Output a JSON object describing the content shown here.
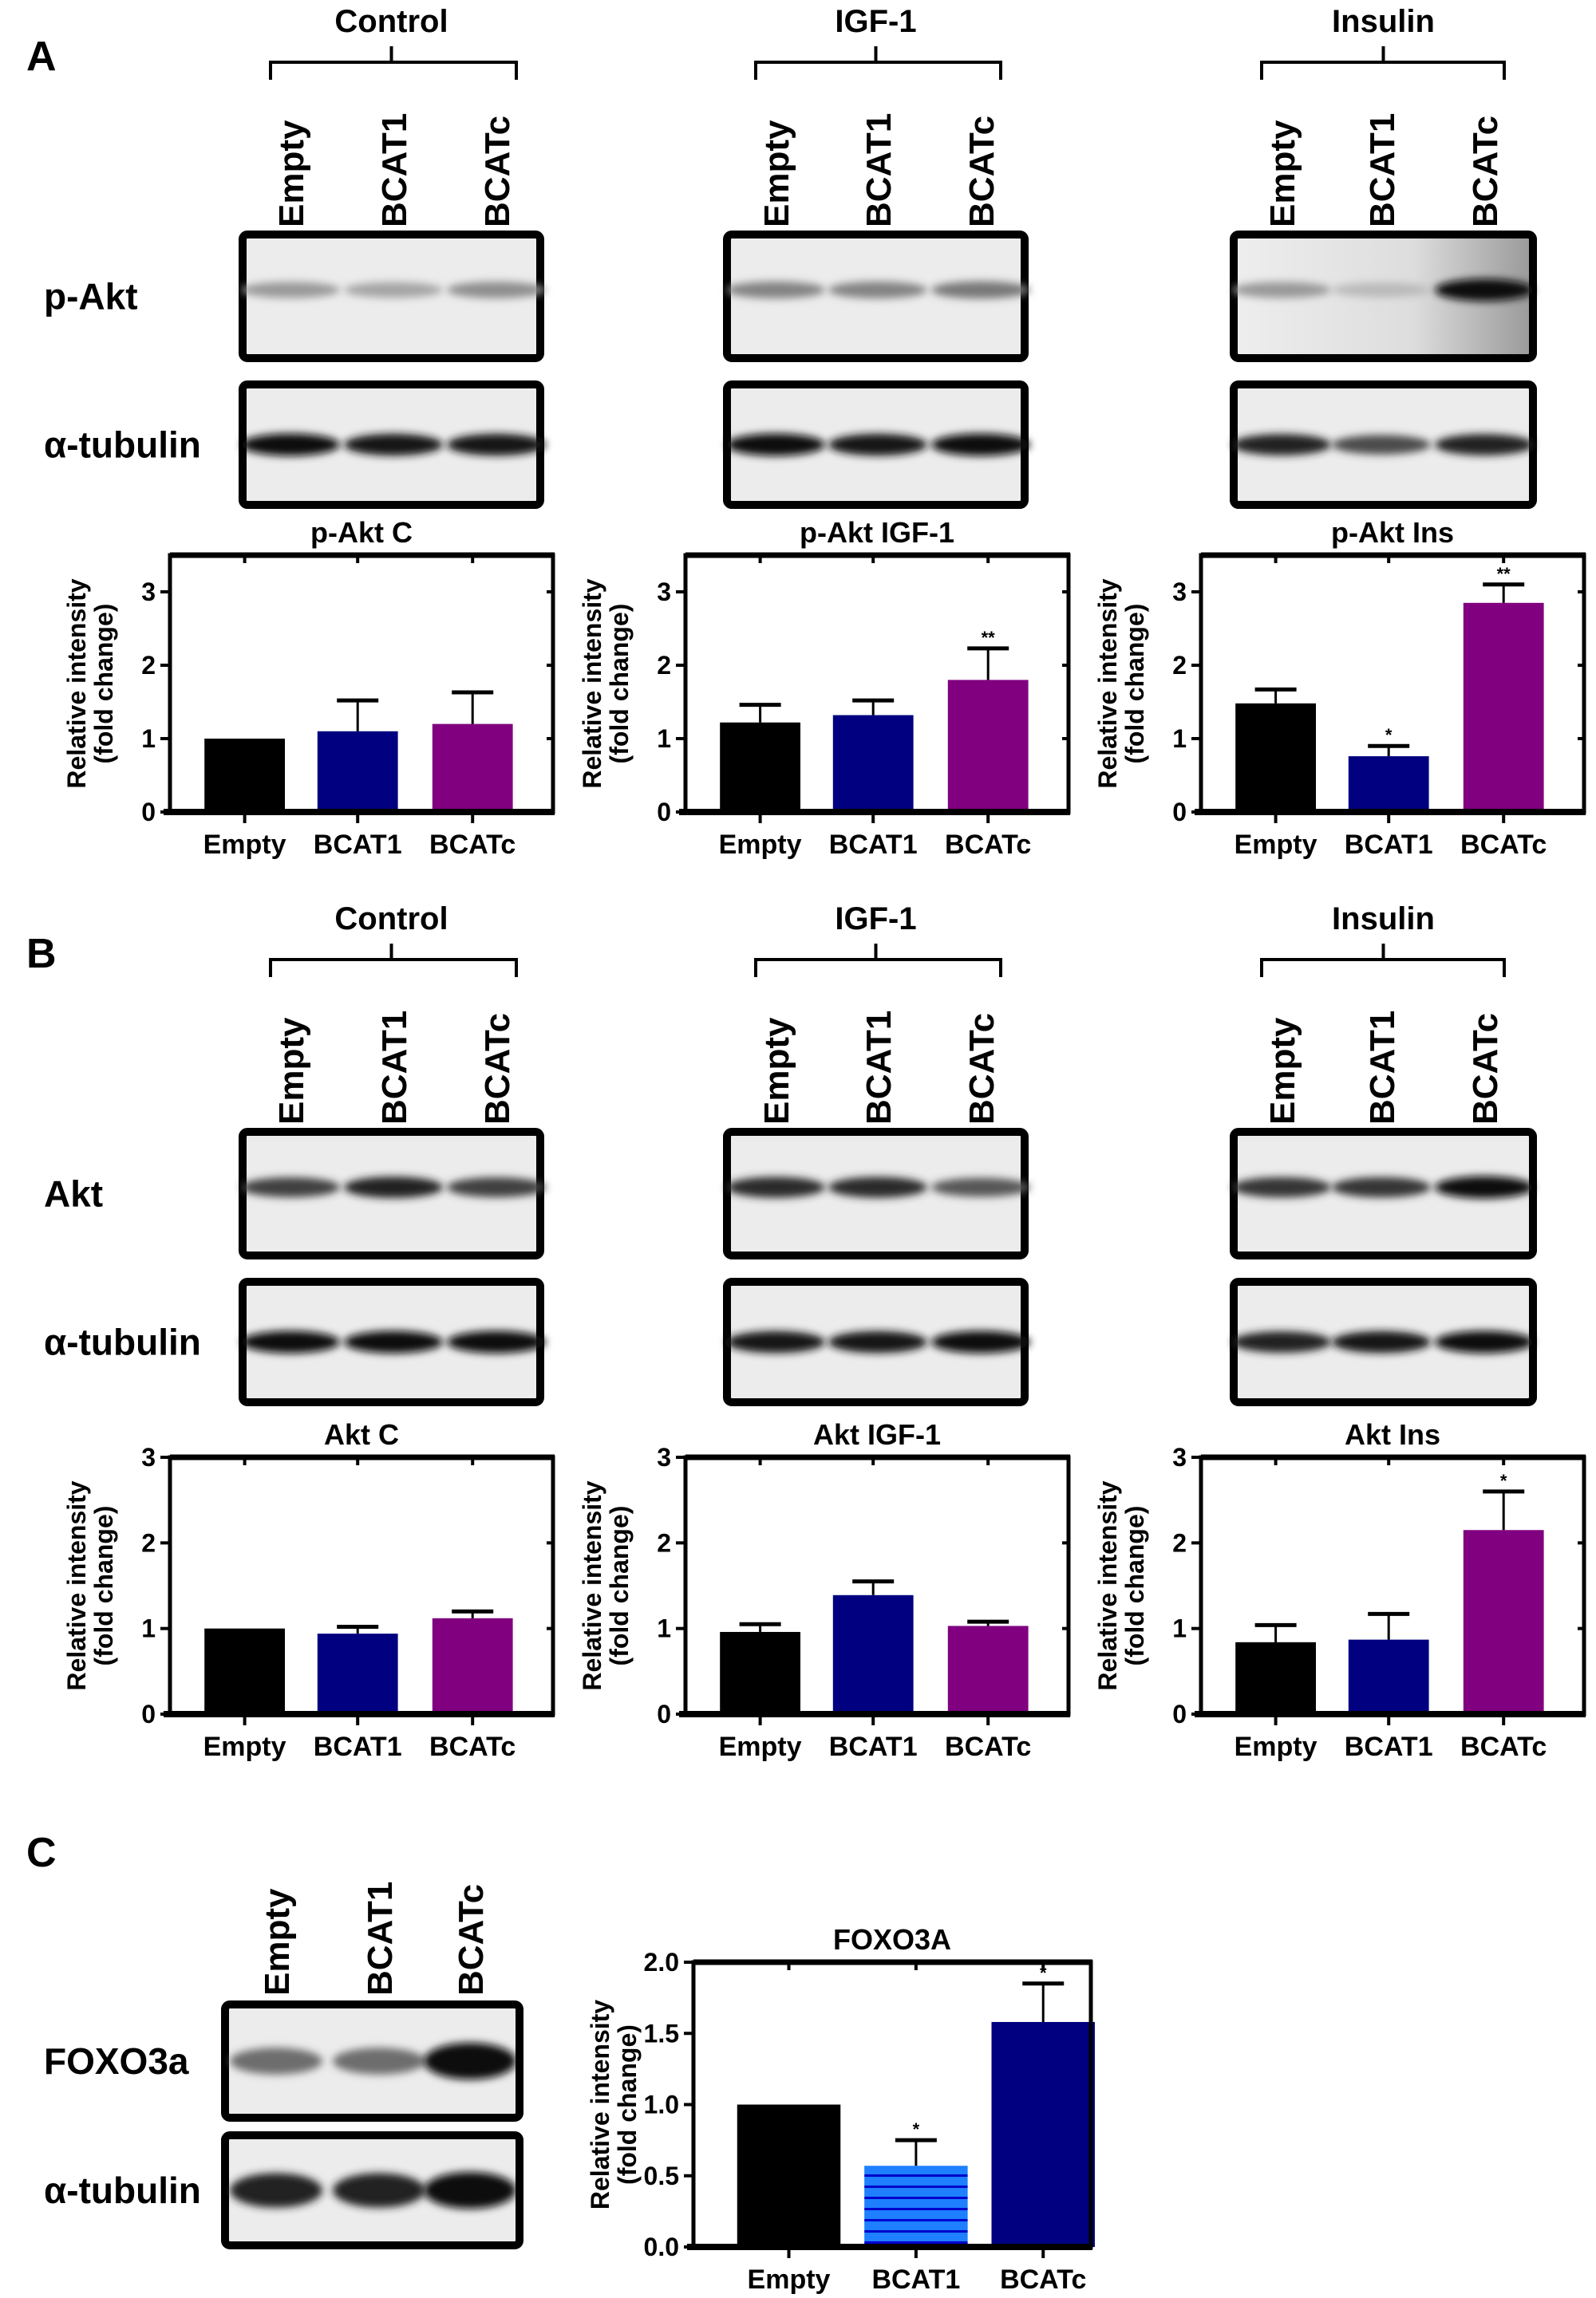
{
  "panels": [
    {
      "letter": "A",
      "groups": [
        "Control",
        "IGF-1",
        "Insulin"
      ],
      "lanes": [
        "Empty",
        "BCAT1",
        "BCATc"
      ],
      "blots": [
        {
          "label": "p-Akt",
          "band_intensity": [
            [
              0.35,
              0.3,
              0.4
            ],
            [
              0.45,
              0.45,
              0.5
            ],
            [
              0.35,
              0.2,
              1.0
            ]
          ]
        },
        {
          "label": "α-tubulin",
          "band_intensity": [
            [
              1,
              0.95,
              0.95
            ],
            [
              1,
              0.95,
              1
            ],
            [
              0.9,
              0.7,
              0.9
            ]
          ]
        }
      ]
    },
    {
      "letter": "B",
      "groups": [
        "Control",
        "IGF-1",
        "Insulin"
      ],
      "lanes": [
        "Empty",
        "BCAT1",
        "BCATc"
      ],
      "blots": [
        {
          "label": "Akt",
          "band_intensity": [
            [
              0.75,
              0.9,
              0.75
            ],
            [
              0.85,
              0.85,
              0.65
            ],
            [
              0.8,
              0.8,
              1.0
            ]
          ]
        },
        {
          "label": "α-tubulin",
          "band_intensity": [
            [
              1,
              1,
              1
            ],
            [
              0.95,
              0.95,
              1
            ],
            [
              0.9,
              0.95,
              1
            ]
          ]
        }
      ]
    },
    {
      "letter": "C",
      "lanes": [
        "Empty",
        "BCAT1",
        "BCATc"
      ],
      "blots": [
        {
          "label": "FOXO3a",
          "band_intensity": [
            [
              0.55,
              0.55,
              1.0
            ]
          ]
        },
        {
          "label": "α-tubulin",
          "band_intensity": [
            [
              0.9,
              0.9,
              1.0
            ]
          ]
        }
      ]
    }
  ],
  "colors": {
    "empty": "#000000",
    "bcat1": "#000080",
    "bcatc": "#800080",
    "bcat1_light": "#1e7fff"
  },
  "chart_data": [
    {
      "type": "bar",
      "title": "p-Akt C",
      "ylabel": [
        "Relative intensity",
        "(fold change)"
      ],
      "categories": [
        "Empty",
        "BCAT1",
        "BCATc"
      ],
      "values": [
        1.0,
        1.1,
        1.2
      ],
      "error_upper": [
        1.0,
        1.52,
        1.63
      ],
      "significance": [
        "",
        "",
        ""
      ],
      "ylim": [
        0,
        3.5
      ],
      "yticks": [
        "0",
        "1",
        "2",
        "3"
      ],
      "colors": [
        "#000000",
        "#000080",
        "#800080"
      ]
    },
    {
      "type": "bar",
      "title": "p-Akt IGF-1",
      "ylabel": [
        "Relative intensity",
        "(fold change)"
      ],
      "categories": [
        "Empty",
        "BCAT1",
        "BCATc"
      ],
      "values": [
        1.22,
        1.32,
        1.8
      ],
      "error_upper": [
        1.46,
        1.52,
        2.23
      ],
      "significance": [
        "",
        "",
        "**"
      ],
      "ylim": [
        0,
        3.5
      ],
      "yticks": [
        "0",
        "1",
        "2",
        "3"
      ],
      "colors": [
        "#000000",
        "#000080",
        "#800080"
      ]
    },
    {
      "type": "bar",
      "title": "p-Akt Ins",
      "ylabel": [
        "Relative intensity",
        "(fold change)"
      ],
      "categories": [
        "Empty",
        "BCAT1",
        "BCATc"
      ],
      "values": [
        1.48,
        0.76,
        2.85
      ],
      "error_upper": [
        1.67,
        0.9,
        3.1
      ],
      "significance": [
        "",
        "*",
        "**"
      ],
      "ylim": [
        0,
        3.5
      ],
      "yticks": [
        "0",
        "1",
        "2",
        "3"
      ],
      "colors": [
        "#000000",
        "#000080",
        "#800080"
      ]
    },
    {
      "type": "bar",
      "title": "Akt C",
      "ylabel": [
        "Relative intensity",
        "(fold change)"
      ],
      "categories": [
        "Empty",
        "BCAT1",
        "BCATc"
      ],
      "values": [
        1.0,
        0.94,
        1.12
      ],
      "error_upper": [
        1.0,
        1.02,
        1.2
      ],
      "significance": [
        "",
        "",
        ""
      ],
      "ylim": [
        0,
        3
      ],
      "yticks": [
        "0",
        "1",
        "2",
        "3"
      ],
      "colors": [
        "#000000",
        "#000080",
        "#800080"
      ]
    },
    {
      "type": "bar",
      "title": "Akt IGF-1",
      "ylabel": [
        "Relative intensity",
        "(fold change)"
      ],
      "categories": [
        "Empty",
        "BCAT1",
        "BCATc"
      ],
      "values": [
        0.96,
        1.39,
        1.03
      ],
      "error_upper": [
        1.05,
        1.55,
        1.08
      ],
      "significance": [
        "",
        "",
        ""
      ],
      "ylim": [
        0,
        3
      ],
      "yticks": [
        "0",
        "1",
        "2",
        "3"
      ],
      "colors": [
        "#000000",
        "#000080",
        "#800080"
      ]
    },
    {
      "type": "bar",
      "title": "Akt Ins",
      "ylabel": [
        "Relative intensity",
        "(fold change)"
      ],
      "categories": [
        "Empty",
        "BCAT1",
        "BCATc"
      ],
      "values": [
        0.84,
        0.87,
        2.15
      ],
      "error_upper": [
        1.04,
        1.17,
        2.6
      ],
      "significance": [
        "",
        "",
        "*"
      ],
      "ylim": [
        0,
        3
      ],
      "yticks": [
        "0",
        "1",
        "2",
        "3"
      ],
      "colors": [
        "#000000",
        "#000080",
        "#800080"
      ]
    },
    {
      "type": "bar",
      "title": "FOXO3A",
      "ylabel": [
        "Relative intensity",
        "(fold change)"
      ],
      "categories": [
        "Empty",
        "BCAT1",
        "BCATc"
      ],
      "values": [
        1.0,
        0.57,
        1.58
      ],
      "error_upper": [
        1.0,
        0.75,
        1.85
      ],
      "significance": [
        "",
        "*",
        "*"
      ],
      "ylim": [
        0,
        2
      ],
      "yticks": [
        "0.0",
        "0.5",
        "1.0",
        "1.5",
        "2.0"
      ],
      "colors": [
        "#000000",
        "#1e7fff",
        "#000080"
      ],
      "hatched": [
        false,
        true,
        false
      ]
    }
  ]
}
